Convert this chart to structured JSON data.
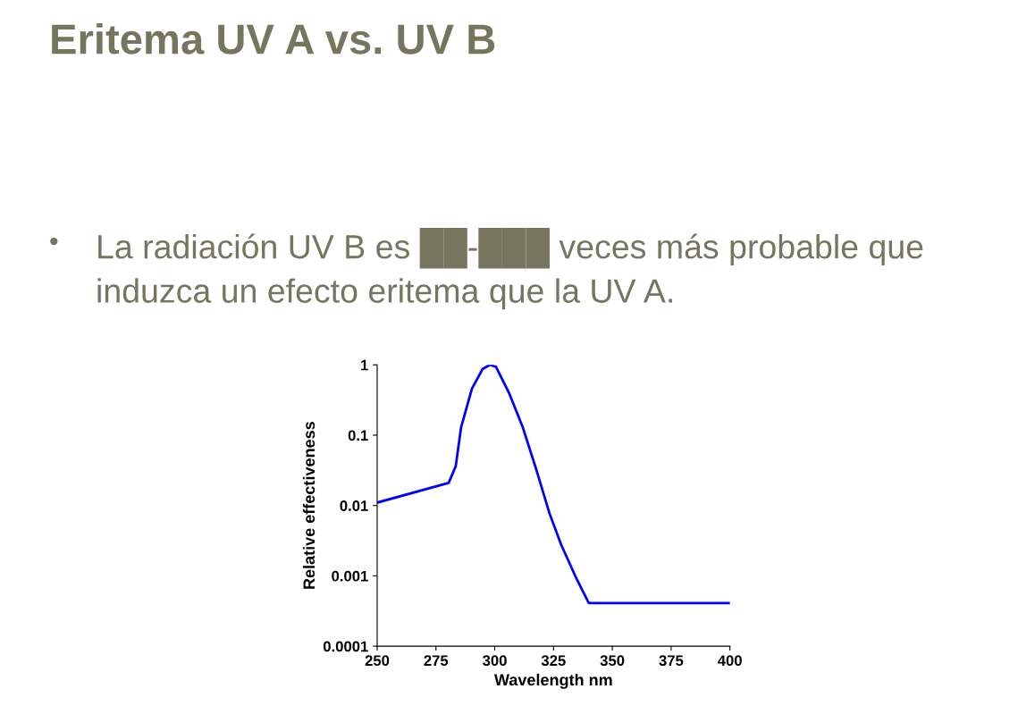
{
  "chart_data": {
    "type": "line",
    "title": "Eritema UV A vs. UV B",
    "annotations": [
      "•",
      "La radiación UV B es ██-███ veces más probable que induzca un efecto eritema que la UV A."
    ],
    "xlabel": "Wavelength nm",
    "ylabel": "Relative effectiveness",
    "log": "y",
    "xlim": [
      250,
      400
    ],
    "xticks": [
      250,
      275,
      300,
      325,
      350,
      375,
      400
    ],
    "ylim": [
      0.0001,
      1
    ],
    "yticks": [
      {
        "value": 0.0001,
        "label": "0.0001"
      },
      {
        "value": 0.001,
        "label": "0.001"
      },
      {
        "value": 0.01,
        "label": "0.01"
      },
      {
        "value": 0.1,
        "label": "0.1"
      },
      {
        "value": 1,
        "label": "1"
      }
    ],
    "grid": false,
    "legend": false,
    "marker": "none",
    "line_style": "solid",
    "series": [
      {
        "color": "#0000ff",
        "x": [
          250,
          280.4,
          283.4,
          285.7,
          290.3,
          294.8,
          297.9,
          300.5,
          306.2,
          311.9,
          317.6,
          323.3,
          328.2,
          334.7,
          340,
          400
        ],
        "values": [
          0.011,
          0.021,
          0.036,
          0.13,
          0.46,
          0.87,
          1,
          0.94,
          0.39,
          0.13,
          0.033,
          0.0077,
          0.0028,
          0.00092,
          0.00041,
          0.00041
        ]
      }
    ]
  }
}
